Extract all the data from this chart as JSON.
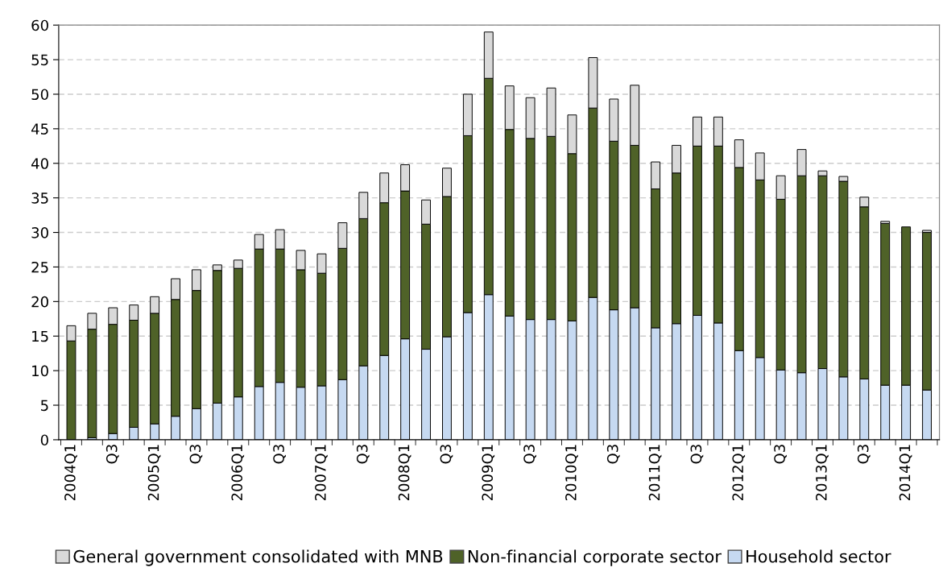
{
  "chart_data": {
    "type": "bar",
    "stacked": true,
    "categories": [
      "2004Q1",
      null,
      "Q3",
      null,
      "2005Q1",
      null,
      "Q3",
      null,
      "2006Q1",
      null,
      "Q3",
      null,
      "2007Q1",
      null,
      "Q3",
      null,
      "2008Q1",
      null,
      "Q3",
      null,
      "2009Q1",
      null,
      "Q3",
      null,
      "2010Q1",
      null,
      "Q3",
      null,
      "2011Q1",
      null,
      "Q3",
      null,
      "2012Q1",
      null,
      "Q3",
      null,
      "2013Q1",
      null,
      "Q3",
      null,
      "2014Q1",
      null
    ],
    "series": [
      {
        "name": "Household sector",
        "color": "#c6d9f1",
        "values": [
          0,
          0.3,
          0.9,
          1.8,
          2.3,
          3.4,
          4.5,
          5.3,
          6.2,
          7.7,
          8.3,
          7.6,
          7.8,
          8.7,
          10.7,
          12.2,
          14.6,
          13.1,
          14.9,
          18.4,
          21.0,
          17.9,
          17.4,
          17.4,
          17.2,
          20.6,
          18.8,
          19.1,
          16.2,
          16.8,
          18.0,
          16.9,
          12.9,
          11.9,
          10.1,
          9.7,
          10.3,
          9.1,
          8.8,
          7.9,
          7.9,
          7.2
        ]
      },
      {
        "name": "Non-financial corporate sector",
        "color": "#4f6228",
        "values": [
          14.3,
          15.7,
          15.8,
          15.5,
          16.0,
          16.9,
          17.1,
          19.2,
          18.6,
          19.9,
          19.3,
          17.0,
          16.3,
          19.0,
          21.3,
          22.1,
          21.4,
          18.1,
          20.3,
          25.6,
          31.3,
          27.0,
          26.2,
          26.5,
          24.2,
          27.4,
          24.4,
          23.5,
          20.1,
          21.8,
          24.5,
          25.6,
          26.5,
          25.7,
          24.7,
          28.5,
          27.9,
          28.3,
          24.9,
          23.4,
          22.9,
          22.8
        ]
      },
      {
        "name": "General government consolidated with MNB",
        "color": "#d9d9d9",
        "values": [
          2.2,
          2.3,
          2.4,
          2.2,
          2.4,
          3.0,
          3.0,
          0.8,
          1.2,
          2.1,
          2.8,
          2.8,
          2.8,
          3.7,
          3.8,
          4.3,
          3.8,
          3.5,
          4.1,
          6.0,
          6.7,
          6.3,
          5.9,
          7.0,
          5.6,
          7.3,
          6.1,
          8.7,
          3.9,
          4.0,
          4.2,
          4.2,
          4.0,
          3.9,
          3.4,
          3.8,
          0.7,
          0.7,
          1.4,
          0.3,
          null,
          0.3
        ]
      }
    ],
    "ylim": [
      0,
      60
    ],
    "yticks": [
      0,
      5,
      10,
      15,
      20,
      25,
      30,
      35,
      40,
      45,
      50,
      55,
      60
    ],
    "grid": "y",
    "legend": "bottom"
  }
}
